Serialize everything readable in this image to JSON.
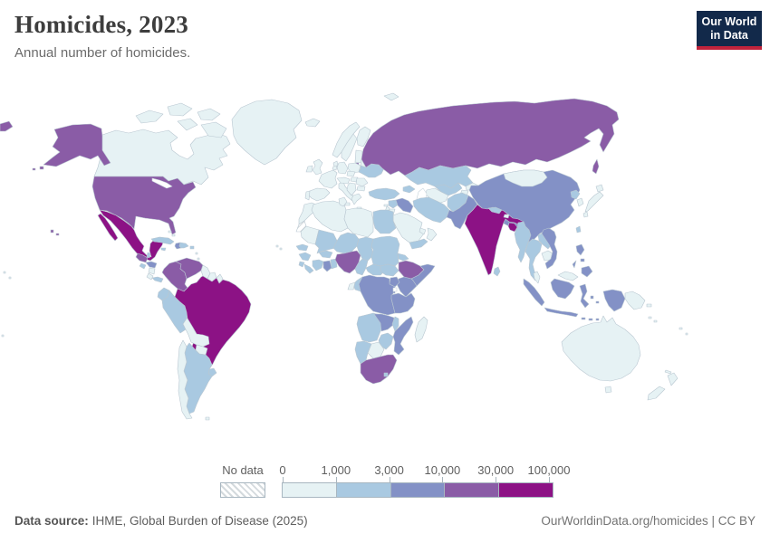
{
  "header": {
    "title": "Homicides, 2023",
    "subtitle": "Annual number of homicides.",
    "logo": {
      "line1": "Our World",
      "line2": "in Data",
      "bg": "#12294a",
      "accent": "#c0233c"
    }
  },
  "footer": {
    "source_label": "Data source:",
    "source": "IHME, Global Burden of Disease (2025)",
    "right": "OurWorldinData.org/homicides | CC BY"
  },
  "chart_data": {
    "type": "choropleth_map",
    "title": "Homicides, 2023",
    "subtitle": "Annual number of homicides.",
    "unit": "homicides per year",
    "legend": {
      "no_data_label": "No data",
      "tick_labels": [
        "0",
        "1,000",
        "3,000",
        "10,000",
        "30,000",
        "100,000"
      ],
      "bin_edges": [
        0,
        1000,
        3000,
        10000,
        30000,
        100000
      ],
      "bin_colors": [
        "#e6f2f4",
        "#a9c9e1",
        "#8391c6",
        "#8a5ca6",
        "#8c1285"
      ],
      "no_data_pattern": "diagonal-hatch"
    },
    "countries": {
      "canada": 0,
      "greenland": 0,
      "iceland": 0,
      "svalbard": 0,
      "usa": 3,
      "mexico": 4,
      "guatemala": 3,
      "belize": 1,
      "honduras": 2,
      "el-salvador": 1,
      "nicaragua": 0,
      "costa-rica": 0,
      "panama": 1,
      "cuba": 1,
      "jamaica": 1,
      "haiti": 2,
      "dominican-republic": 1,
      "puerto-rico": 1,
      "bahamas": 0,
      "lesser-antilles": 0,
      "trinidad": 0,
      "cape-verde": 0,
      "colombia": 3,
      "venezuela": 3,
      "guyana": 0,
      "suriname": 0,
      "french-guiana": 0,
      "ecuador": 1,
      "peru": 1,
      "brazil": 4,
      "bolivia": 0,
      "paraguay": 0,
      "uruguay": 1,
      "argentina": 1,
      "chile": 0,
      "falklands": 0,
      "uk": 0,
      "ireland": 0,
      "norway": 0,
      "sweden": 0,
      "finland": 0,
      "denmark": 0,
      "baltics": 0,
      "belarus": 0,
      "poland": 0,
      "germany": 0,
      "benelux": 0,
      "france": 0,
      "spain": 0,
      "portugal": 0,
      "italy": 0,
      "austria": 0,
      "czech-slovakia": 0,
      "hungary": 0,
      "romania": 0,
      "bulgaria": 0,
      "balkans": 0,
      "greece": 0,
      "ukraine": 1,
      "russia": 3,
      "kaliningrad": 3,
      "kazakhstan": 1,
      "uzbekistan": 1,
      "turkmenistan": 0,
      "kyrgyzstan": 0,
      "tajikistan": 0,
      "caucasus": 1,
      "turkey": 1,
      "cyprus": 0,
      "syria": 1,
      "lebanon-israel": 0,
      "jordan": 0,
      "iraq": 2,
      "saudi-arabia": 0,
      "uae-qatar": 0,
      "yemen": 1,
      "oman": 0,
      "iran": 1,
      "afghanistan": 1,
      "pakistan": 2,
      "morocco": 0,
      "western-sahara": "nodata",
      "algeria": 0,
      "tunisia": 0,
      "libya": 0,
      "egypt": 1,
      "mauritania": 0,
      "mali": 1,
      "niger": 1,
      "chad": 1,
      "sudan": 1,
      "eritrea": 1,
      "senegal": 1,
      "guinea": 1,
      "sierra-leone": 1,
      "liberia": 1,
      "ivory-coast": 1,
      "ghana": 2,
      "togo-benin": 1,
      "burkina-faso": 1,
      "nigeria": 3,
      "cameroon": 1,
      "car": 1,
      "south-sudan": 1,
      "ethiopia": 3,
      "somalia": 2,
      "kenya": 2,
      "uganda": 2,
      "rwanda-burundi": 2,
      "drc": 2,
      "congo": 1,
      "gabon": 0,
      "angola": 1,
      "zambia": 2,
      "malawi": 1,
      "tanzania": 2,
      "mozambique": 2,
      "zimbabwe": 1,
      "botswana": 0,
      "namibia": 1,
      "south-africa": 3,
      "lesotho": 1,
      "madagascar": 0,
      "china": 2,
      "mongolia": 0,
      "north-korea": 1,
      "south-korea": 0,
      "japan": 0,
      "taiwan": 1,
      "india": 4,
      "bangladesh": 4,
      "nepal": 1,
      "bhutan": 0,
      "sri-lanka": 1,
      "myanmar": 1,
      "thailand": 1,
      "laos": 1,
      "cambodia": 0,
      "vietnam": 2,
      "malaysia": 0,
      "indonesia": 2,
      "philippines": 2,
      "papua-new-guinea": 0,
      "australia": 0,
      "new-zealand": 0,
      "fiji": 0,
      "new-caledonia": 0,
      "solomon": 0,
      "pacific-islands": 0
    }
  }
}
